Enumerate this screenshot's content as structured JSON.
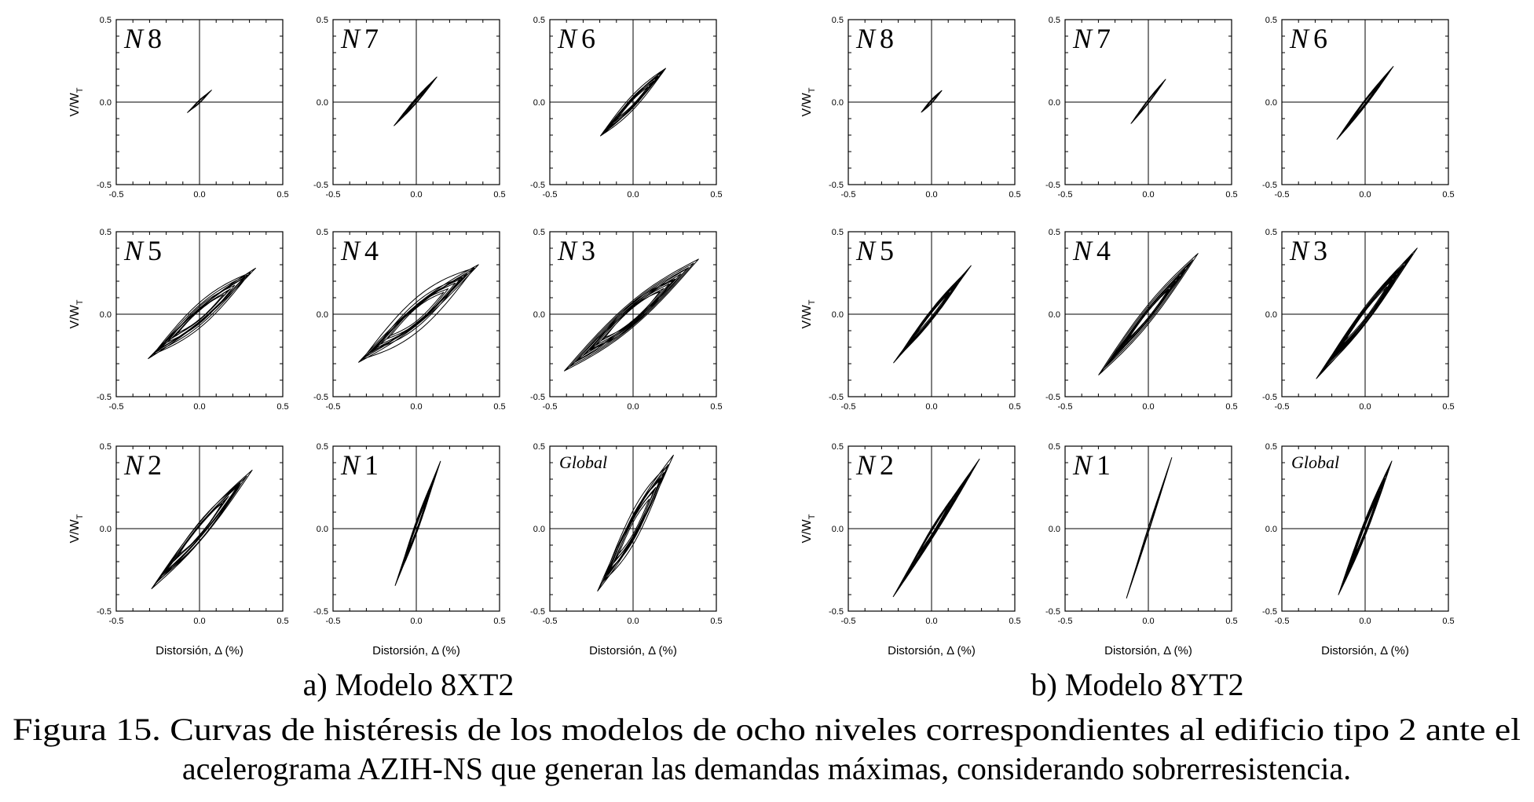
{
  "figure": {
    "caption_line1": "Figura 15. Curvas de histéresis de los modelos de ocho niveles correspondientes al edificio tipo 2 ante el",
    "caption_line2": "acelerograma AZIH-NS que generan las demandas máximas, considerando sobrerresistencia."
  },
  "axis_text": {
    "ylabel_main": "V/W",
    "ylabel_sub": "T",
    "xlabel": "Distorsión, Δ (%)"
  },
  "chart_data": [
    {
      "group": "a",
      "subcaption": "a) Modelo 8XT2",
      "panels": [
        {
          "id": "N8",
          "label_letter": "N",
          "label_number": "8",
          "type": "line",
          "xlabel": "",
          "ylabel": "V/WT",
          "xlim": [
            -0.5,
            0.5
          ],
          "ylim": [
            -0.5,
            0.5
          ],
          "x_ticks": [
            "-0.5",
            "0.0",
            "0.5"
          ],
          "y_ticks": [
            "0.5",
            "0.0",
            "-0.5"
          ],
          "extents": {
            "xmin": -0.08,
            "xmax": 0.08,
            "ymin": -0.07,
            "ymax": 0.08
          },
          "loops": 4,
          "spread": 0.01
        },
        {
          "id": "N7",
          "label_letter": "N",
          "label_number": "7",
          "type": "line",
          "xlabel": "",
          "ylabel": "",
          "xlim": [
            -0.5,
            0.5
          ],
          "ylim": [
            -0.5,
            0.5
          ],
          "x_ticks": [
            "-0.5",
            "0.0",
            "0.5"
          ],
          "y_ticks": [
            "0.5",
            "0.0",
            "-0.5"
          ],
          "extents": {
            "xmin": -0.14,
            "xmax": 0.13,
            "ymin": -0.15,
            "ymax": 0.16
          },
          "loops": 5,
          "spread": 0.015
        },
        {
          "id": "N6",
          "label_letter": "N",
          "label_number": "6",
          "type": "line",
          "xlabel": "",
          "ylabel": "",
          "xlim": [
            -0.5,
            0.5
          ],
          "ylim": [
            -0.5,
            0.5
          ],
          "x_ticks": [
            "-0.5",
            "0.0",
            "0.5"
          ],
          "y_ticks": [
            "0.5",
            "0.0",
            "-0.5"
          ],
          "extents": {
            "xmin": -0.21,
            "xmax": 0.21,
            "ymin": -0.22,
            "ymax": 0.22
          },
          "loops": 8,
          "spread": 0.04
        },
        {
          "id": "N5",
          "label_letter": "N",
          "label_number": "5",
          "type": "line",
          "xlabel": "",
          "ylabel": "V/WT",
          "xlim": [
            -0.5,
            0.5
          ],
          "ylim": [
            -0.5,
            0.5
          ],
          "x_ticks": [
            "-0.5",
            "0.0",
            "0.5"
          ],
          "y_ticks": [
            "0.5",
            "0.0",
            "-0.5"
          ],
          "extents": {
            "xmin": -0.32,
            "xmax": 0.35,
            "ymin": -0.28,
            "ymax": 0.29
          },
          "loops": 9,
          "spread": 0.07
        },
        {
          "id": "N4",
          "label_letter": "N",
          "label_number": "4",
          "type": "line",
          "xlabel": "",
          "ylabel": "",
          "xlim": [
            -0.5,
            0.5
          ],
          "ylim": [
            -0.5,
            0.5
          ],
          "x_ticks": [
            "-0.5",
            "0.0",
            "0.5"
          ],
          "y_ticks": [
            "0.5",
            "0.0",
            "-0.5"
          ],
          "extents": {
            "xmin": -0.38,
            "xmax": 0.41,
            "ymin": -0.32,
            "ymax": 0.33
          },
          "loops": 10,
          "spread": 0.09
        },
        {
          "id": "N3",
          "label_letter": "N",
          "label_number": "3",
          "type": "line",
          "xlabel": "",
          "ylabel": "",
          "xlim": [
            -0.5,
            0.5
          ],
          "ylim": [
            -0.5,
            0.5
          ],
          "x_ticks": [
            "-0.5",
            "0.0",
            "0.5"
          ],
          "y_ticks": [
            "0.5",
            "0.0",
            "-0.5"
          ],
          "extents": {
            "xmin": -0.42,
            "xmax": 0.4,
            "ymin": -0.35,
            "ymax": 0.34
          },
          "loops": 10,
          "spread": 0.09
        },
        {
          "id": "N2",
          "label_letter": "N",
          "label_number": "2",
          "type": "line",
          "xlabel": "",
          "ylabel": "V/WT",
          "xlim": [
            -0.5,
            0.5
          ],
          "ylim": [
            -0.5,
            0.5
          ],
          "x_ticks": [
            "-0.5",
            "0.0",
            "0.5"
          ],
          "y_ticks": [
            "0.5",
            "0.0",
            "-0.5"
          ],
          "extents": {
            "xmin": -0.3,
            "xmax": 0.33,
            "ymin": -0.38,
            "ymax": 0.37
          },
          "loops": 9,
          "spread": 0.06
        },
        {
          "id": "N1",
          "label_letter": "N",
          "label_number": "1",
          "type": "line",
          "xlabel": "",
          "ylabel": "",
          "xlim": [
            -0.5,
            0.5
          ],
          "ylim": [
            -0.5,
            0.5
          ],
          "x_ticks": [
            "-0.5",
            "0.0",
            "0.5"
          ],
          "y_ticks": [
            "0.5",
            "0.0",
            "-0.5"
          ],
          "extents": {
            "xmin": -0.14,
            "xmax": 0.16,
            "ymin": -0.38,
            "ymax": 0.45
          },
          "loops": 8,
          "spread": 0.04
        },
        {
          "id": "Global",
          "label_text": "Global",
          "type": "line",
          "xlabel": "",
          "ylabel": "",
          "xlim": [
            -0.5,
            0.5
          ],
          "ylim": [
            -0.5,
            0.5
          ],
          "x_ticks": [
            "-0.5",
            "0.0",
            "0.5"
          ],
          "y_ticks": [
            "0.5",
            "0.0",
            "-0.5"
          ],
          "extents": {
            "xmin": -0.22,
            "xmax": 0.25,
            "ymin": -0.39,
            "ymax": 0.46
          },
          "loops": 12,
          "spread": 0.1
        }
      ]
    },
    {
      "group": "b",
      "subcaption": "b) Modelo 8YT2",
      "panels": [
        {
          "id": "N8",
          "label_letter": "N",
          "label_number": "8",
          "type": "line",
          "xlabel": "",
          "ylabel": "V/WT",
          "xlim": [
            -0.5,
            0.5
          ],
          "ylim": [
            -0.5,
            0.5
          ],
          "x_ticks": [
            "-0.5",
            "0.0",
            "0.5"
          ],
          "y_ticks": [
            "0.5",
            "0.0",
            "-0.5"
          ],
          "extents": {
            "xmin": -0.07,
            "xmax": 0.07,
            "ymin": -0.07,
            "ymax": 0.08
          },
          "loops": 4,
          "spread": 0.01
        },
        {
          "id": "N7",
          "label_letter": "N",
          "label_number": "7",
          "type": "line",
          "xlabel": "",
          "ylabel": "",
          "xlim": [
            -0.5,
            0.5
          ],
          "ylim": [
            -0.5,
            0.5
          ],
          "x_ticks": [
            "-0.5",
            "0.0",
            "0.5"
          ],
          "y_ticks": [
            "0.5",
            "0.0",
            "-0.5"
          ],
          "extents": {
            "xmin": -0.12,
            "xmax": 0.12,
            "ymin": -0.15,
            "ymax": 0.16
          },
          "loops": 5,
          "spread": 0.012
        },
        {
          "id": "N6",
          "label_letter": "N",
          "label_number": "6",
          "type": "line",
          "xlabel": "",
          "ylabel": "",
          "xlim": [
            -0.5,
            0.5
          ],
          "ylim": [
            -0.5,
            0.5
          ],
          "x_ticks": [
            "-0.5",
            "0.0",
            "0.5"
          ],
          "y_ticks": [
            "0.5",
            "0.0",
            "-0.5"
          ],
          "extents": {
            "xmin": -0.18,
            "xmax": 0.18,
            "ymin": -0.24,
            "ymax": 0.23
          },
          "loops": 7,
          "spread": 0.02
        },
        {
          "id": "N5",
          "label_letter": "N",
          "label_number": "5",
          "type": "line",
          "xlabel": "",
          "ylabel": "V/WT",
          "xlim": [
            -0.5,
            0.5
          ],
          "ylim": [
            -0.5,
            0.5
          ],
          "x_ticks": [
            "-0.5",
            "0.0",
            "0.5"
          ],
          "y_ticks": [
            "0.5",
            "0.0",
            "-0.5"
          ],
          "extents": {
            "xmin": -0.24,
            "xmax": 0.25,
            "ymin": -0.31,
            "ymax": 0.31
          },
          "loops": 8,
          "spread": 0.03
        },
        {
          "id": "N4",
          "label_letter": "N",
          "label_number": "4",
          "type": "line",
          "xlabel": "",
          "ylabel": "",
          "xlim": [
            -0.5,
            0.5
          ],
          "ylim": [
            -0.5,
            0.5
          ],
          "x_ticks": [
            "-0.5",
            "0.0",
            "0.5"
          ],
          "y_ticks": [
            "0.5",
            "0.0",
            "-0.5"
          ],
          "extents": {
            "xmin": -0.3,
            "xmax": 0.3,
            "ymin": -0.37,
            "ymax": 0.37
          },
          "loops": 10,
          "spread": 0.05
        },
        {
          "id": "N3",
          "label_letter": "N",
          "label_number": "3",
          "type": "line",
          "xlabel": "",
          "ylabel": "",
          "xlim": [
            -0.5,
            0.5
          ],
          "ylim": [
            -0.5,
            0.5
          ],
          "x_ticks": [
            "-0.5",
            "0.0",
            "0.5"
          ],
          "y_ticks": [
            "0.5",
            "0.0",
            "-0.5"
          ],
          "extents": {
            "xmin": -0.3,
            "xmax": 0.32,
            "ymin": -0.4,
            "ymax": 0.41
          },
          "loops": 10,
          "spread": 0.05
        },
        {
          "id": "N2",
          "label_letter": "N",
          "label_number": "2",
          "type": "line",
          "xlabel": "",
          "ylabel": "V/WT",
          "xlim": [
            -0.5,
            0.5
          ],
          "ylim": [
            -0.5,
            0.5
          ],
          "x_ticks": [
            "-0.5",
            "0.0",
            "0.5"
          ],
          "y_ticks": [
            "0.5",
            "0.0",
            "-0.5"
          ],
          "extents": {
            "xmin": -0.24,
            "xmax": 0.3,
            "ymin": -0.43,
            "ymax": 0.44
          },
          "loops": 10,
          "spread": 0.04
        },
        {
          "id": "N1",
          "label_letter": "N",
          "label_number": "1",
          "type": "line",
          "xlabel": "",
          "ylabel": "",
          "xlim": [
            -0.5,
            0.5
          ],
          "ylim": [
            -0.5,
            0.5
          ],
          "x_ticks": [
            "-0.5",
            "0.0",
            "0.5"
          ],
          "y_ticks": [
            "0.5",
            "0.0",
            "-0.5"
          ],
          "extents": {
            "xmin": -0.14,
            "xmax": 0.15,
            "ymin": -0.45,
            "ymax": 0.46
          },
          "loops": 9,
          "spread": 0.02
        },
        {
          "id": "Global",
          "label_text": "Global",
          "type": "line",
          "xlabel": "",
          "ylabel": "",
          "xlim": [
            -0.5,
            0.5
          ],
          "ylim": [
            -0.5,
            0.5
          ],
          "x_ticks": [
            "-0.5",
            "0.0",
            "0.5"
          ],
          "y_ticks": [
            "0.5",
            "0.0",
            "-0.5"
          ],
          "extents": {
            "xmin": -0.18,
            "xmax": 0.18,
            "ymin": -0.45,
            "ymax": 0.46
          },
          "loops": 11,
          "spread": 0.05
        }
      ]
    }
  ]
}
